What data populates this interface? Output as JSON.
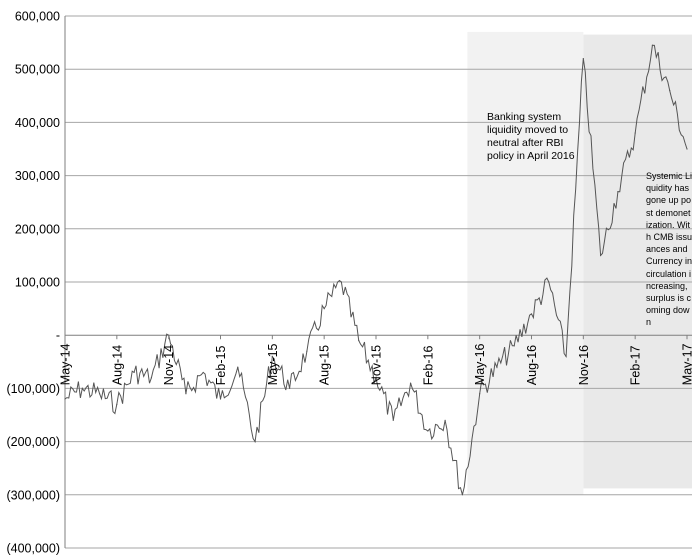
{
  "chart_data": {
    "type": "line",
    "title": "",
    "xlabel": "",
    "ylabel": "",
    "ylim": [
      -400000,
      600000
    ],
    "y_tick_labels": [
      "600,000",
      "500,000",
      "400,000",
      "300,000",
      "200,000",
      "100,000",
      "-",
      "(100,000)",
      "(200,000)",
      "(300,000)",
      "(400,000)"
    ],
    "x_tick_labels": [
      "May-14",
      "Aug-14",
      "Nov-14",
      "Feb-15",
      "May-15",
      "Aug-15",
      "Nov-15",
      "Feb-16",
      "May-16",
      "Aug-16",
      "Nov-16",
      "Feb-17",
      "May-17"
    ],
    "grid": "horizontal",
    "series": [
      {
        "color": "#555555",
        "points": [
          [
            "May-14",
            -120000
          ],
          [
            "Jun-14",
            -100000
          ],
          [
            "Jul-14",
            -110000
          ],
          [
            "Aug-14",
            -130000
          ],
          [
            "Sep-14",
            -70000
          ],
          [
            "Oct-14",
            -80000
          ],
          [
            "Nov-14",
            0
          ],
          [
            "Dec-14",
            -110000
          ],
          [
            "Jan-15",
            -70000
          ],
          [
            "Feb-15",
            -120000
          ],
          [
            "Mar-15",
            -60000
          ],
          [
            "Apr-15",
            -200000
          ],
          [
            "May-15",
            -40000
          ],
          [
            "Jun-15",
            -100000
          ],
          [
            "Jul-15",
            -30000
          ],
          [
            "Aug-15",
            50000
          ],
          [
            "Sep-15",
            100000
          ],
          [
            "Oct-15",
            -10000
          ],
          [
            "Nov-15",
            -80000
          ],
          [
            "Dec-15",
            -160000
          ],
          [
            "Jan-16",
            -90000
          ],
          [
            "Feb-16",
            -180000
          ],
          [
            "Mar-16",
            -160000
          ],
          [
            "Apr-16",
            -300000
          ],
          [
            "May-16",
            -110000
          ],
          [
            "Jun-16",
            -60000
          ],
          [
            "Jul-16",
            -20000
          ],
          [
            "Aug-16",
            40000
          ],
          [
            "Sep-16",
            100000
          ],
          [
            "Oct-16",
            -40000
          ],
          [
            "Nov-16",
            520000
          ],
          [
            "Dec-16",
            150000
          ],
          [
            "Jan-17",
            270000
          ],
          [
            "Feb-17",
            380000
          ],
          [
            "Mar-17",
            545000
          ],
          [
            "Apr-17",
            460000
          ],
          [
            "May-17",
            350000
          ]
        ]
      }
    ],
    "shaded_regions": [
      {
        "from": "Apr-16",
        "to": "Nov-16",
        "color": "#f2f2f2"
      },
      {
        "from": "Nov-16",
        "to": "May-17",
        "color": "#e9e9e9"
      }
    ]
  },
  "annotations": [
    {
      "text": "Banking system liquidity moved to neutral after RBI policy in April 2016"
    },
    {
      "text": "Systemic Liquidity has gone up post demonetization. With CMB issuances and Currency in circulation increasing, surplus is coming down"
    }
  ],
  "colors": {
    "line": "#555555",
    "grid": "#a6a6a6",
    "axis": "#7f7f7f"
  }
}
